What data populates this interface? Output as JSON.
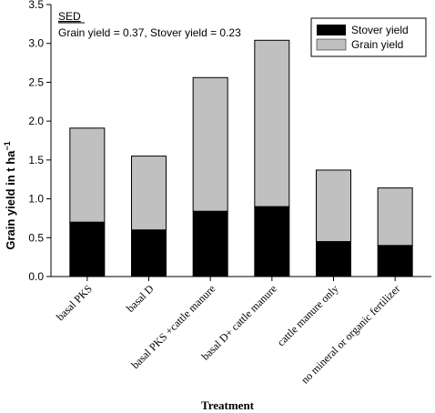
{
  "chart_data": {
    "type": "bar",
    "stacked": true,
    "categories": [
      "basal PKS",
      "basal D",
      "basal PKS +cattle manure",
      "basal D+ cattle manure",
      "cattle manure only",
      "no mineral or organic fertilizer"
    ],
    "series": [
      {
        "name": "Stover yield",
        "values": [
          0.7,
          0.6,
          0.84,
          0.9,
          0.45,
          0.4
        ],
        "color": "#000000"
      },
      {
        "name": "Grain yield",
        "values": [
          1.21,
          0.95,
          1.72,
          2.14,
          0.92,
          0.74
        ],
        "color": "#c0c0c0"
      }
    ],
    "ylim": [
      0,
      3.5
    ],
    "yticks": [
      "0.0",
      "0.5",
      "1.0",
      "1.5",
      "2.0",
      "2.5",
      "3.0",
      "3.5"
    ],
    "ylabel": "Grain yield in t ha",
    "ylabel_superscript": "−1",
    "xlabel": "Treatment",
    "legend_position": "top-right",
    "annotation": {
      "title": "SED",
      "text": "Grain yield = 0.37, Stover yield = 0.23"
    }
  }
}
